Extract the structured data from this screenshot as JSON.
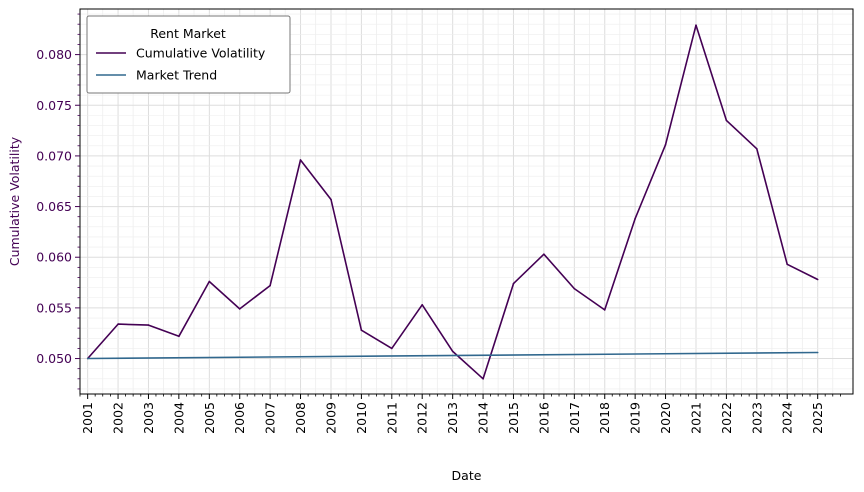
{
  "chart_data": {
    "type": "line",
    "xlabel": "Date",
    "ylabel": "Cumulative Volatility",
    "x_tick_labels": [
      "2001",
      "2002",
      "2003",
      "2004",
      "2005",
      "2006",
      "2007",
      "2008",
      "2009",
      "2010",
      "2011",
      "2012",
      "2013",
      "2014",
      "2015",
      "2016",
      "2017",
      "2018",
      "2019",
      "2020",
      "2021",
      "2022",
      "2023",
      "2024",
      "2025"
    ],
    "y_ticks": [
      0.05,
      0.055,
      0.06,
      0.065,
      0.07,
      0.075,
      0.08
    ],
    "y_tick_labels": [
      "0.050",
      "0.055",
      "0.060",
      "0.065",
      "0.070",
      "0.075",
      "0.080"
    ],
    "x_range": [
      "2000-10-01",
      "2026-03-01"
    ],
    "ylim": [
      0.0465,
      0.0845
    ],
    "grid": true,
    "legend": {
      "title": "Rent Market",
      "placement": "top-left"
    },
    "series": [
      {
        "name": "Cumulative Volatility",
        "color": "#440154",
        "points": [
          {
            "date": "2001-01-01",
            "value": 0.05
          },
          {
            "date": "2002-01-01",
            "value": 0.0534
          },
          {
            "date": "2003-01-01",
            "value": 0.0533
          },
          {
            "date": "2004-01-01",
            "value": 0.0522
          },
          {
            "date": "2005-01-01",
            "value": 0.0576
          },
          {
            "date": "2006-01-01",
            "value": 0.0549
          },
          {
            "date": "2007-01-01",
            "value": 0.0572
          },
          {
            "date": "2008-01-01",
            "value": 0.0696
          },
          {
            "date": "2009-01-01",
            "value": 0.0657
          },
          {
            "date": "2010-01-01",
            "value": 0.0528
          },
          {
            "date": "2011-01-01",
            "value": 0.051
          },
          {
            "date": "2012-01-01",
            "value": 0.0553
          },
          {
            "date": "2013-01-01",
            "value": 0.0507
          },
          {
            "date": "2014-01-01",
            "value": 0.048
          },
          {
            "date": "2015-01-01",
            "value": 0.0574
          },
          {
            "date": "2016-01-01",
            "value": 0.0603
          },
          {
            "date": "2017-01-01",
            "value": 0.0569
          },
          {
            "date": "2018-01-01",
            "value": 0.0548
          },
          {
            "date": "2019-01-01",
            "value": 0.0638
          },
          {
            "date": "2020-01-01",
            "value": 0.0711
          },
          {
            "date": "2021-01-01",
            "value": 0.0829
          },
          {
            "date": "2022-01-01",
            "value": 0.0735
          },
          {
            "date": "2023-01-01",
            "value": 0.0707
          },
          {
            "date": "2024-01-01",
            "value": 0.0593
          },
          {
            "date": "2025-01-01",
            "value": 0.0578
          }
        ]
      },
      {
        "name": "Market Trend",
        "color": "#31688e",
        "points": [
          {
            "date": "2001-01-01",
            "value": 0.05
          },
          {
            "date": "2025-01-01",
            "value": 0.0506
          }
        ]
      }
    ],
    "colors": {
      "ylabel": "#440154",
      "ytick": "#440154",
      "grid": "#dddddd",
      "minor_grid": "#eeeeee"
    }
  }
}
